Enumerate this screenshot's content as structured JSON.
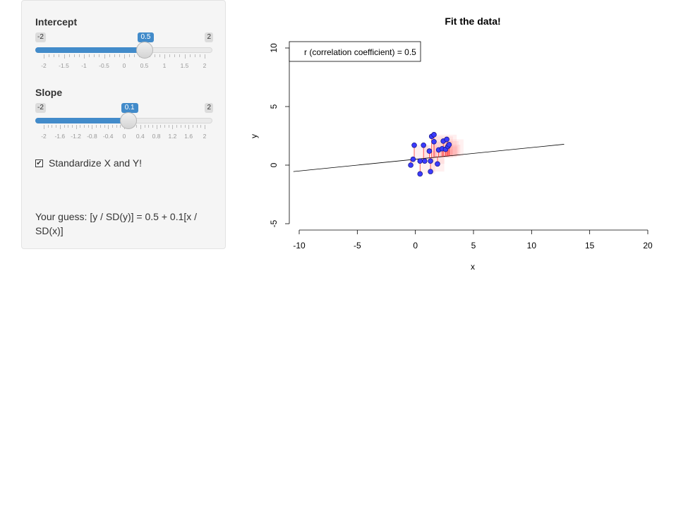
{
  "sidebar": {
    "intercept": {
      "label": "Intercept",
      "min": -2,
      "max": 2,
      "value": 0.5,
      "min_label": "-2",
      "max_label": "2",
      "value_label": "0.5",
      "tick_labels": [
        "-2",
        "-1.5",
        "-1",
        "-0.5",
        "0",
        "0.5",
        "1",
        "1.5",
        "2"
      ]
    },
    "slope": {
      "label": "Slope",
      "min": -2,
      "max": 2,
      "value": 0.1,
      "min_label": "-2",
      "max_label": "2",
      "value_label": "0.1",
      "tick_labels": [
        "-2",
        "-1.6",
        "-1.2",
        "-0.8",
        "-0.4",
        "0",
        "0.4",
        "0.8",
        "1.2",
        "1.6",
        "2"
      ]
    },
    "standardize": {
      "label": "Standardize X and Y!",
      "checked": true
    },
    "guess_text": "Your guess: [y / SD(y)] = 0.5 + 0.1[x / SD(x)]"
  },
  "chart_data": {
    "type": "scatter",
    "title": "Fit the data!",
    "xlabel": "x",
    "ylabel": "y",
    "xlim": [
      -10,
      20
    ],
    "ylim": [
      -5,
      10
    ],
    "x_ticks": [
      "-10",
      "-5",
      "0",
      "5",
      "10",
      "15",
      "20"
    ],
    "y_ticks": [
      "-5",
      "0",
      "5",
      "10"
    ],
    "legend_text": "r (correlation coefficient) = 0.5",
    "legend_position": "top-left",
    "line": {
      "x": [
        -10.5,
        12.8
      ],
      "y": [
        -0.55,
        1.78
      ]
    },
    "points": [
      {
        "x": -0.4,
        "y": 0.0
      },
      {
        "x": -0.2,
        "y": 0.5
      },
      {
        "x": -0.1,
        "y": 1.7
      },
      {
        "x": 0.4,
        "y": -0.75
      },
      {
        "x": 0.4,
        "y": 0.35
      },
      {
        "x": 0.7,
        "y": 1.7
      },
      {
        "x": 0.8,
        "y": 0.35
      },
      {
        "x": 1.2,
        "y": 1.2
      },
      {
        "x": 1.3,
        "y": -0.55
      },
      {
        "x": 1.3,
        "y": 0.35
      },
      {
        "x": 1.4,
        "y": 2.45
      },
      {
        "x": 1.6,
        "y": 2.6
      },
      {
        "x": 1.6,
        "y": 2.0
      },
      {
        "x": 1.9,
        "y": 0.1
      },
      {
        "x": 2.0,
        "y": 1.3
      },
      {
        "x": 2.3,
        "y": 1.4
      },
      {
        "x": 2.4,
        "y": 2.05
      },
      {
        "x": 2.6,
        "y": 1.35
      },
      {
        "x": 2.7,
        "y": 2.2
      },
      {
        "x": 2.8,
        "y": 1.6
      },
      {
        "x": 2.9,
        "y": 1.75
      }
    ],
    "colors": {
      "point_fill": "#3b3bff",
      "point_stroke": "#1a1a8c",
      "residual": "#ff3333",
      "square": "#ff0000"
    }
  }
}
